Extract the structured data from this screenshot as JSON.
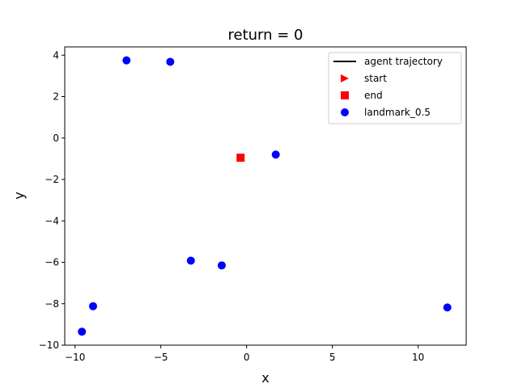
{
  "chart_data": {
    "type": "scatter",
    "title": "return = 0",
    "xlabel": "x",
    "ylabel": "y",
    "xlim": [
      -10.6,
      12.8
    ],
    "ylim": [
      -10.0,
      4.4
    ],
    "xticks": [
      -10,
      -5,
      0,
      5,
      10
    ],
    "yticks": [
      -10,
      -8,
      -6,
      -4,
      -2,
      0,
      2,
      4
    ],
    "grid": false,
    "legend_position": "top-right",
    "series": [
      {
        "name": "agent trajectory",
        "kind": "line",
        "color": "#000000",
        "points": []
      },
      {
        "name": "start",
        "kind": "marker",
        "marker": "triangle-right",
        "color": "#ff0000",
        "points": []
      },
      {
        "name": "end",
        "kind": "marker",
        "marker": "square",
        "color": "#ff0000",
        "points": [
          [
            -0.35,
            -0.95
          ]
        ]
      },
      {
        "name": "landmark_0.5",
        "kind": "marker",
        "marker": "circle",
        "color": "#0000ff",
        "points": [
          [
            -7.0,
            3.75
          ],
          [
            -4.45,
            3.68
          ],
          [
            1.7,
            -0.8
          ],
          [
            -3.25,
            -5.92
          ],
          [
            -1.45,
            -6.15
          ],
          [
            -8.95,
            -8.12
          ],
          [
            -9.6,
            -9.35
          ],
          [
            11.7,
            -8.18
          ]
        ]
      }
    ]
  }
}
